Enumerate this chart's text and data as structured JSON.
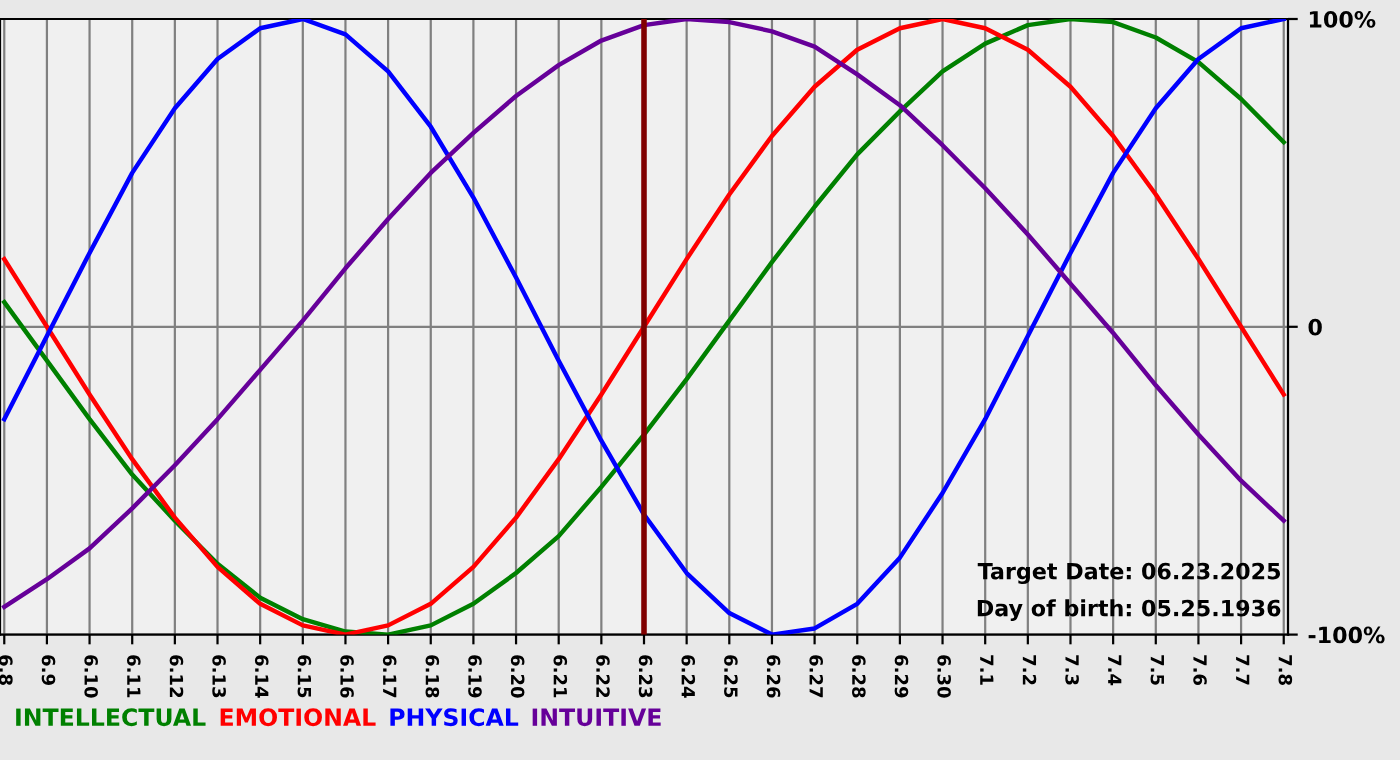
{
  "chart_data": {
    "type": "line",
    "categories": [
      "6.8",
      "6.9",
      "6.10",
      "6.11",
      "6.12",
      "6.13",
      "6.14",
      "6.15",
      "6.16",
      "6.17",
      "6.18",
      "6.19",
      "6.20",
      "6.21",
      "6.22",
      "6.23",
      "6.24",
      "6.25",
      "6.26",
      "6.27",
      "6.28",
      "6.29",
      "6.30",
      "7.1",
      "7.2",
      "7.3",
      "7.4",
      "7.5",
      "7.6",
      "7.7",
      "7.8"
    ],
    "series": [
      {
        "name": "INTELLECTUAL",
        "color": "#008000",
        "values": [
          8,
          -11,
          -30,
          -48,
          -63,
          -77,
          -88,
          -95,
          -99,
          -100,
          -97,
          -90,
          -80,
          -68,
          -52,
          -35,
          -17,
          2,
          21,
          39,
          56,
          70,
          83,
          92,
          98,
          100,
          99,
          94,
          86,
          74,
          60
        ]
      },
      {
        "name": "EMOTIONAL",
        "color": "#ff0000",
        "values": [
          22,
          0,
          -22,
          -43,
          -62,
          -78,
          -90,
          -97,
          -100,
          -97,
          -90,
          -78,
          -62,
          -43,
          -22,
          0,
          22,
          43,
          62,
          78,
          90,
          97,
          100,
          97,
          90,
          78,
          62,
          43,
          22,
          0,
          -22
        ]
      },
      {
        "name": "PHYSICAL",
        "color": "#0000ff",
        "values": [
          -30,
          -3,
          24,
          50,
          71,
          87,
          97,
          100,
          95,
          83,
          65,
          42,
          16,
          -11,
          -37,
          -61,
          -80,
          -93,
          -100,
          -98,
          -90,
          -75,
          -54,
          -30,
          -3,
          24,
          50,
          71,
          87,
          97,
          100
        ]
      },
      {
        "name": "INTUITIVE",
        "color": "#660099",
        "values": [
          -91,
          -82,
          -72,
          -59,
          -45,
          -30,
          -14,
          2,
          19,
          35,
          50,
          63,
          75,
          85,
          93,
          98,
          100,
          99,
          96,
          91,
          82,
          72,
          59,
          45,
          30,
          14,
          -2,
          -19,
          -35,
          -50,
          -63
        ]
      }
    ],
    "ylim": [
      -100,
      100
    ],
    "yticks": [
      {
        "value": 100,
        "label": "100%"
      },
      0,
      {
        "value": -100,
        "label": "-100%"
      }
    ],
    "ref_lines": [
      {
        "axis": "x",
        "value": "6.23",
        "color": "#800000"
      }
    ],
    "annotations": [
      "Target Date: 06.23.2025",
      "Day of birth: 05.25.1936"
    ],
    "grid": true,
    "legend": "bottom",
    "marker": "none",
    "line_style": "solid"
  }
}
